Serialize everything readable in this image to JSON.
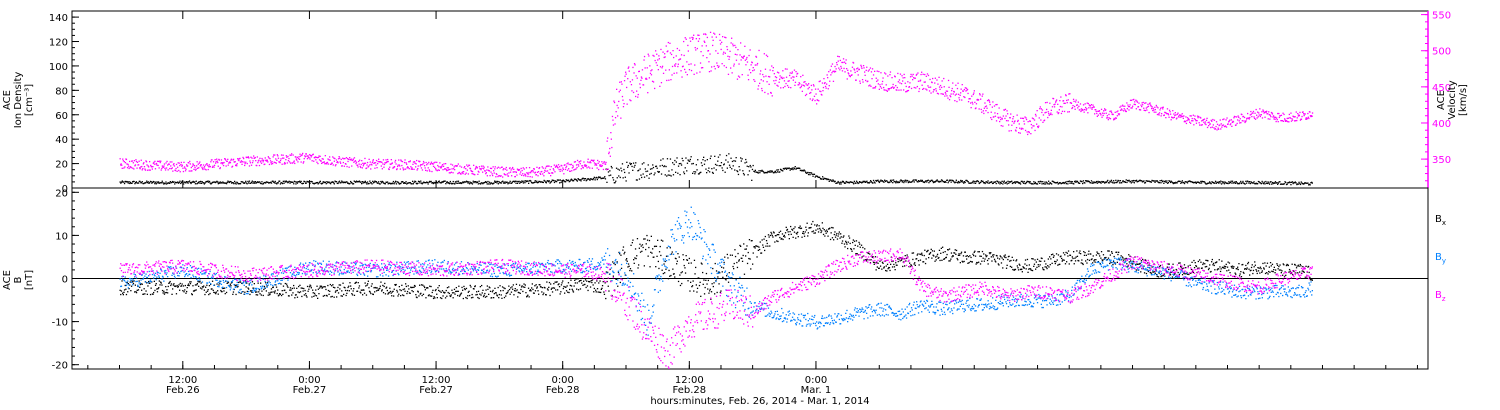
{
  "chart_data": [
    {
      "type": "scatter",
      "ylabel_lines": [
        "ACE",
        "Ion Density",
        "[cm⁻³]"
      ],
      "ylim": [
        0,
        145
      ],
      "yticks": [
        0,
        20,
        40,
        60,
        80,
        100,
        120,
        140
      ],
      "y2label_lines": [
        "ACE",
        "Velocity",
        "[km/s]"
      ],
      "y2lim": [
        310,
        555
      ],
      "y2ticks": [
        350,
        400,
        450,
        500,
        550
      ],
      "grid": false,
      "series": [
        {
          "axis": "left",
          "color": "#000000",
          "x": [
            0,
            6,
            12,
            18,
            24,
            30,
            36,
            42,
            46,
            47,
            48,
            50,
            52,
            54,
            56,
            58,
            60,
            62,
            64,
            66,
            68,
            70,
            72,
            78,
            84,
            90,
            96,
            102,
            108,
            113
          ],
          "y": [
            5,
            5,
            5,
            5,
            5,
            5,
            5,
            6,
            9,
            12,
            14,
            16,
            18,
            20,
            20,
            21,
            14,
            14,
            17,
            10,
            5,
            5,
            6,
            6,
            5,
            5,
            6,
            5,
            5,
            4
          ]
        },
        {
          "axis": "right",
          "color": "#ff00ff",
          "x": [
            0,
            3,
            6,
            9,
            12,
            15,
            18,
            21,
            24,
            27,
            30,
            33,
            36,
            39,
            42,
            44,
            46,
            47,
            48,
            50,
            52,
            54,
            56,
            58,
            60,
            62,
            64,
            66,
            68,
            70,
            72,
            74,
            76,
            78,
            80,
            82,
            84,
            86,
            88,
            90,
            92,
            94,
            96,
            98,
            100,
            102,
            104,
            106,
            108,
            110,
            112,
            113
          ],
          "y": [
            345,
            342,
            340,
            344,
            348,
            350,
            353,
            347,
            344,
            343,
            340,
            336,
            333,
            332,
            337,
            345,
            342,
            420,
            450,
            470,
            485,
            495,
            500,
            490,
            478,
            465,
            460,
            440,
            480,
            470,
            460,
            455,
            458,
            450,
            440,
            425,
            405,
            395,
            420,
            428,
            420,
            410,
            428,
            420,
            410,
            404,
            398,
            405,
            415,
            408,
            410,
            415
          ]
        }
      ],
      "legend": "none"
    },
    {
      "type": "scatter",
      "ylabel_lines": [
        "ACE",
        "B",
        "[nT]"
      ],
      "ylim": [
        -21,
        21
      ],
      "yticks": [
        -20,
        -10,
        0,
        10,
        20
      ],
      "zero_line": true,
      "grid": false,
      "legend": "right",
      "series": [
        {
          "name": "B",
          "sub": "x",
          "color": "#000000",
          "x": [
            0,
            6,
            12,
            18,
            24,
            30,
            36,
            42,
            44,
            46,
            48,
            50,
            52,
            54,
            56,
            58,
            60,
            62,
            64,
            66,
            68,
            70,
            72,
            74,
            76,
            78,
            80,
            82,
            84,
            86,
            88,
            90,
            92,
            94,
            96,
            98,
            100,
            102,
            104,
            106,
            108,
            110,
            112,
            113
          ],
          "y": [
            -2,
            -2,
            -2,
            -3,
            -2,
            -3,
            -3,
            -2,
            -1,
            -2,
            5,
            7,
            4,
            1,
            -1,
            3,
            6,
            10,
            11,
            12,
            10,
            7,
            3,
            4,
            5,
            6,
            5,
            5,
            4,
            3,
            4,
            5,
            5,
            5,
            4,
            2,
            2,
            3,
            3,
            2,
            3,
            2,
            2,
            1
          ]
        },
        {
          "name": "B",
          "sub": "y",
          "color": "#0080ff",
          "x": [
            0,
            6,
            12,
            18,
            24,
            30,
            36,
            42,
            44,
            46,
            48,
            50,
            52,
            54,
            56,
            58,
            60,
            62,
            64,
            66,
            68,
            70,
            72,
            74,
            76,
            78,
            80,
            82,
            84,
            86,
            88,
            90,
            92,
            94,
            96,
            98,
            100,
            102,
            104,
            106,
            108,
            110,
            112,
            113
          ],
          "y": [
            -1,
            2,
            -2,
            3,
            2,
            3,
            2,
            3,
            3,
            4,
            2,
            -10,
            8,
            14,
            5,
            -2,
            -6,
            -8,
            -9,
            -10,
            -9,
            -8,
            -7,
            -8,
            -6,
            -7,
            -6,
            -6,
            -5,
            -5,
            -5,
            -4,
            2,
            4,
            3,
            2,
            1,
            -1,
            -2,
            -3,
            -3,
            -3,
            -3,
            -2
          ]
        },
        {
          "name": "B",
          "sub": "z",
          "color": "#ff00ff",
          "x": [
            0,
            6,
            12,
            18,
            24,
            30,
            36,
            42,
            44,
            46,
            48,
            50,
            52,
            54,
            56,
            58,
            60,
            62,
            64,
            66,
            68,
            70,
            72,
            74,
            76,
            78,
            80,
            82,
            84,
            86,
            88,
            90,
            92,
            94,
            96,
            98,
            100,
            102,
            104,
            106,
            108,
            110,
            112,
            113
          ],
          "y": [
            2,
            3,
            1,
            2,
            3,
            2,
            3,
            2,
            2,
            1,
            -5,
            -12,
            -17,
            -10,
            -8,
            -6,
            -8,
            -4,
            -2,
            0,
            3,
            5,
            5,
            6,
            -2,
            -4,
            -3,
            -2,
            -4,
            -3,
            -3,
            -4,
            -2,
            1,
            4,
            3,
            2,
            1,
            0,
            -1,
            -2,
            0,
            1,
            2
          ]
        }
      ]
    }
  ],
  "time_axis": {
    "xlim": [
      -4.5,
      124
    ],
    "ticks": [
      {
        "x": 6,
        "l1": "12:00",
        "l2": "Feb.26"
      },
      {
        "x": 18,
        "l1": "0:00",
        "l2": "Feb.27"
      },
      {
        "x": 30,
        "l1": "12:00",
        "l2": "Feb.27"
      },
      {
        "x": 42,
        "l1": "0:00",
        "l2": "Feb.28"
      },
      {
        "x": 54,
        "l1": "12:00",
        "l2": "Feb.28"
      },
      {
        "x": 66,
        "l1": "0:00",
        "l2": "Mar. 1"
      }
    ],
    "xlabel": "hours:minutes, Feb. 26, 2014 - Mar.  1, 2014"
  }
}
